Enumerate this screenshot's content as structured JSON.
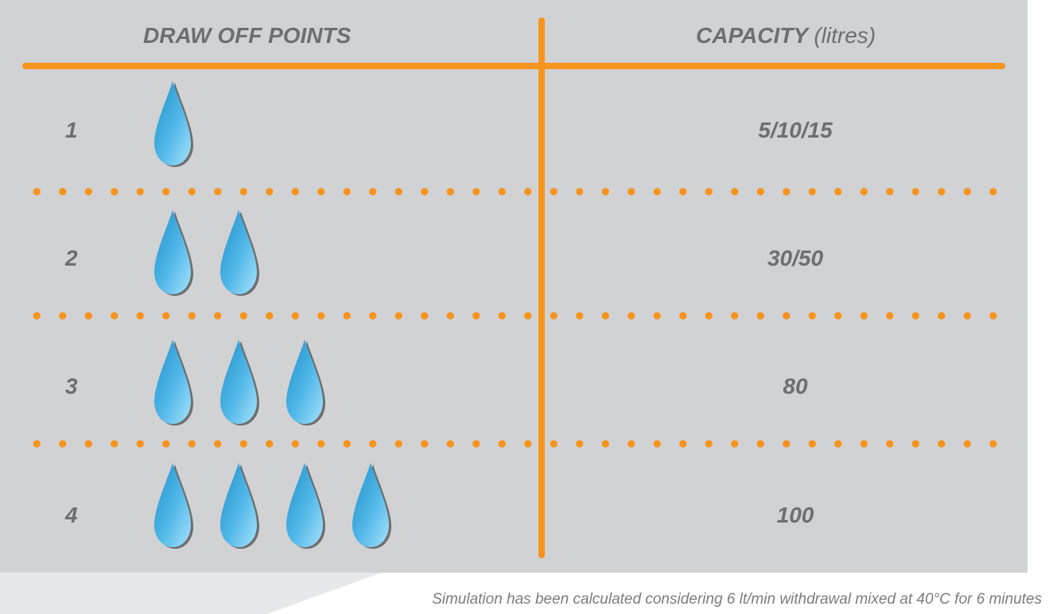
{
  "header": {
    "left": "DRAW OFF POINTS",
    "right": "CAPACITY",
    "right_unit": "(litres)"
  },
  "rows": [
    {
      "points": "1",
      "drops": 1,
      "capacity": "5/10/15"
    },
    {
      "points": "2",
      "drops": 2,
      "capacity": "30/50"
    },
    {
      "points": "3",
      "drops": 3,
      "capacity": "80"
    },
    {
      "points": "4",
      "drops": 4,
      "capacity": "100"
    }
  ],
  "footnote": "Simulation has been calculated considering 6 lt/min withdrawal mixed at 40°C for 6 minutes",
  "colors": {
    "background": "#d1d2d4",
    "accent": "#f7941d",
    "text": "#6d6e71",
    "drop_light": "#a8e2fb",
    "drop_dark": "#1d8fc9"
  },
  "icons": {
    "drop": "water-drop-icon"
  }
}
